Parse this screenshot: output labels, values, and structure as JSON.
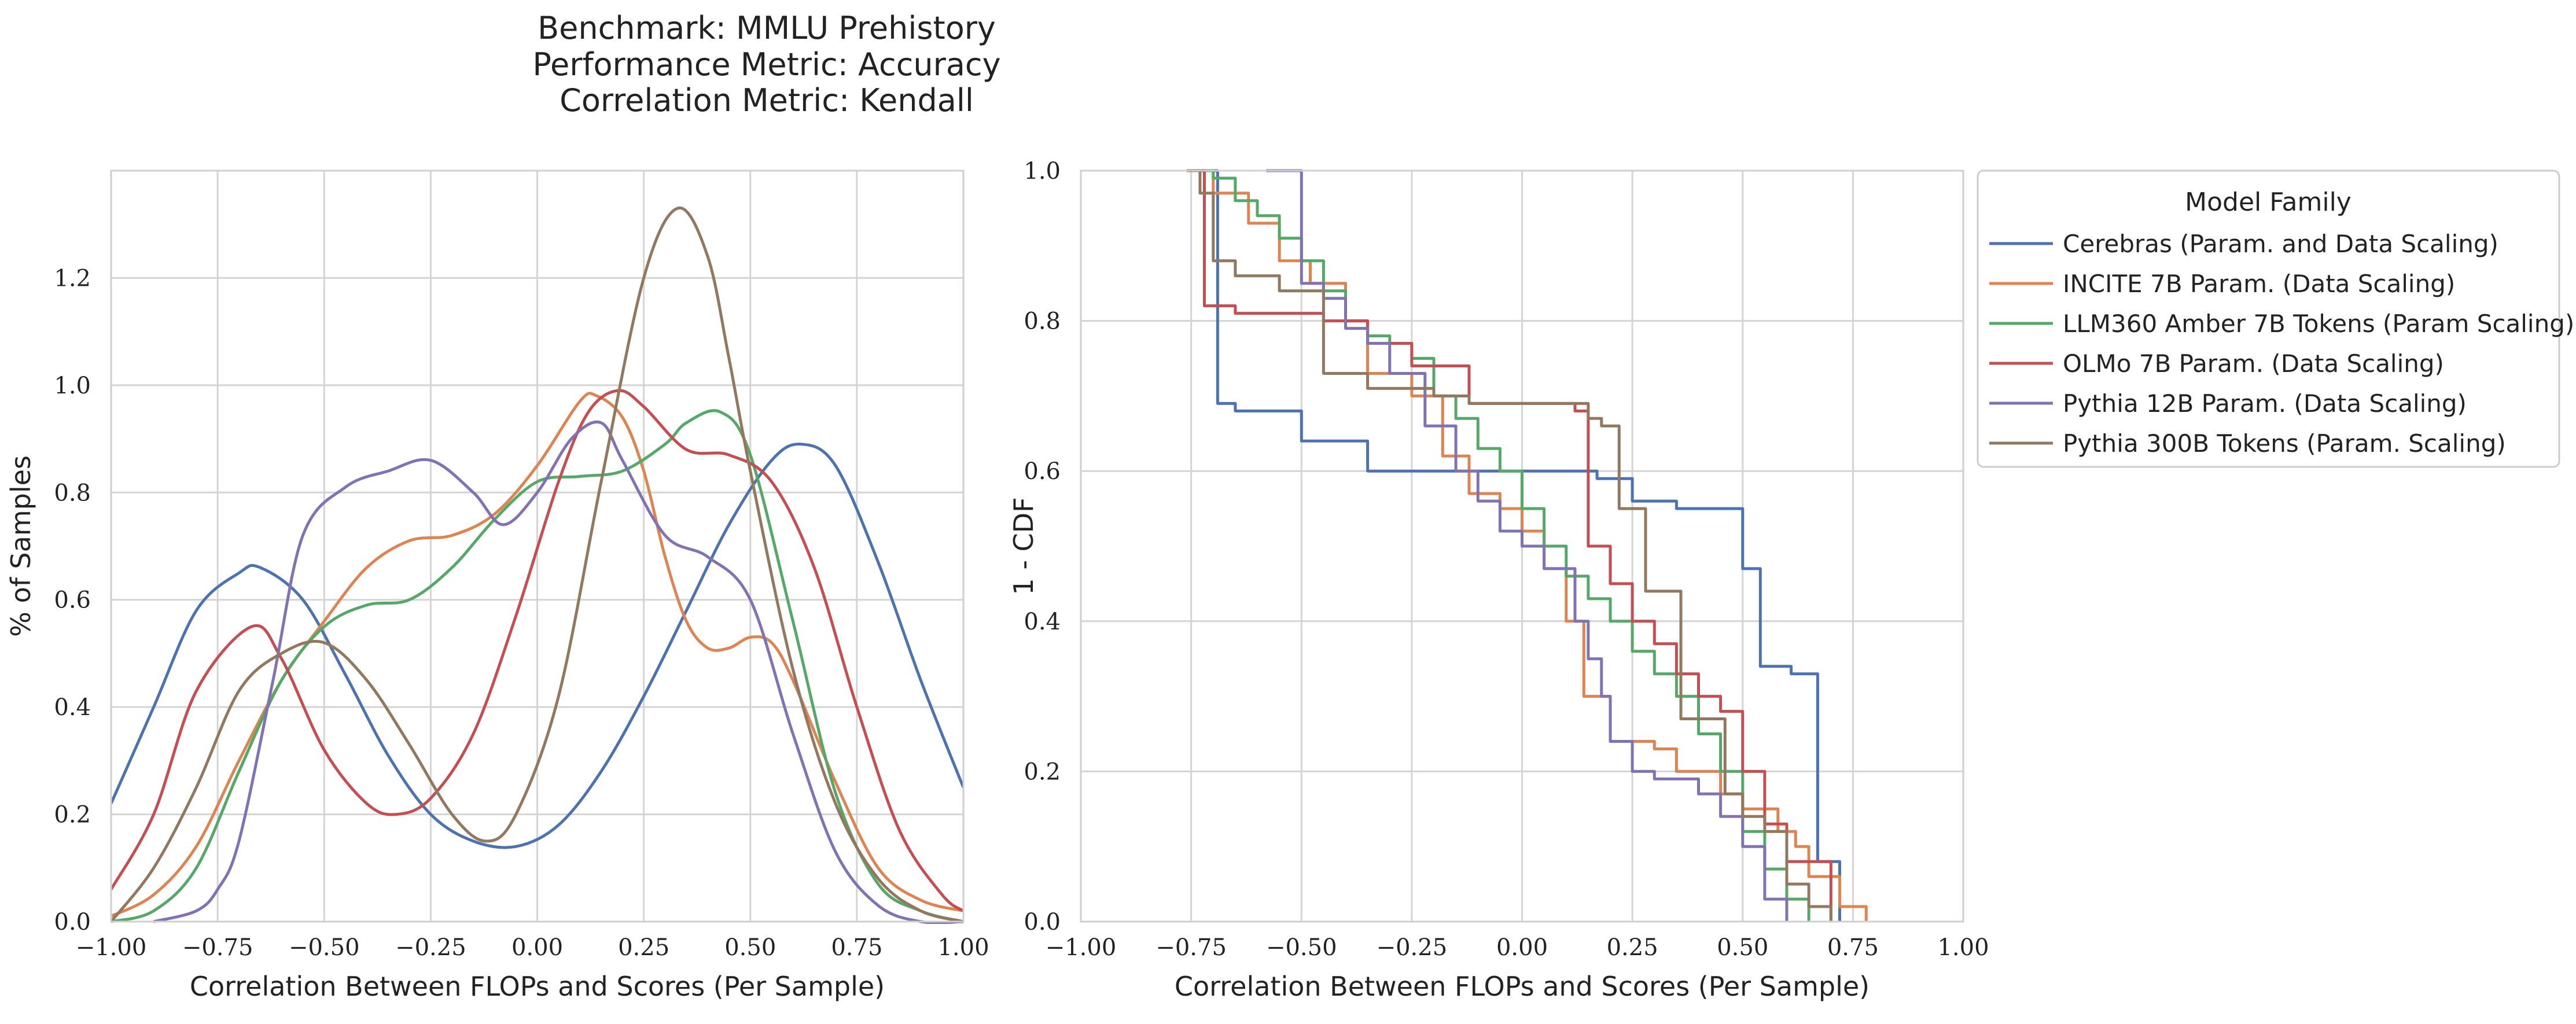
{
  "figure": {
    "title_lines": [
      "Benchmark: MMLU Prehistory",
      "Performance Metric: Accuracy",
      "Correlation Metric: Kendall"
    ]
  },
  "legend": {
    "title": "Model Family",
    "placement": "right of second panel, top",
    "entries": [
      {
        "name": "Cerebras (Param. and Data Scaling)",
        "color": "#4c72b0"
      },
      {
        "name": "INCITE 7B Param. (Data Scaling)",
        "color": "#dd8452"
      },
      {
        "name": "LLM360 Amber 7B Tokens (Param Scaling)",
        "color": "#55a868"
      },
      {
        "name": "OLMo 7B Param. (Data Scaling)",
        "color": "#c44e52"
      },
      {
        "name": "Pythia 12B Param. (Data Scaling)",
        "color": "#8172b3"
      },
      {
        "name": "Pythia 300B Tokens (Param. Scaling)",
        "color": "#937860"
      }
    ]
  },
  "chart_data": [
    {
      "type": "line",
      "subtype": "kde",
      "xlabel": "Correlation Between FLOPs and Scores (Per Sample)",
      "ylabel": "% of Samples",
      "xlim": [
        -1.0,
        1.0
      ],
      "ylim": [
        0.0,
        1.4
      ],
      "grid": true,
      "xticks": [
        -1.0,
        -0.75,
        -0.5,
        -0.25,
        0.0,
        0.25,
        0.5,
        0.75,
        1.0
      ],
      "xtick_labels": [
        "−1.00",
        "−0.75",
        "−0.50",
        "−0.25",
        "0.00",
        "0.25",
        "0.50",
        "0.75",
        "1.00"
      ],
      "yticks": [
        0.0,
        0.2,
        0.4,
        0.6,
        0.8,
        1.0,
        1.2
      ],
      "ytick_labels": [
        "0.0",
        "0.2",
        "0.4",
        "0.6",
        "0.8",
        "1.0",
        "1.2"
      ],
      "series": [
        {
          "name": "Cerebras (Param. and Data Scaling)",
          "color": "#4c72b0",
          "x": [
            -1.0,
            -0.9,
            -0.8,
            -0.7,
            -0.65,
            -0.55,
            -0.45,
            -0.35,
            -0.25,
            -0.15,
            -0.05,
            0.05,
            0.15,
            0.25,
            0.35,
            0.45,
            0.55,
            0.62,
            0.7,
            0.8,
            0.9,
            1.0
          ],
          "y": [
            0.22,
            0.4,
            0.58,
            0.65,
            0.66,
            0.6,
            0.46,
            0.31,
            0.2,
            0.15,
            0.14,
            0.18,
            0.28,
            0.42,
            0.58,
            0.74,
            0.86,
            0.89,
            0.85,
            0.67,
            0.45,
            0.25
          ]
        },
        {
          "name": "INCITE 7B Param. (Data Scaling)",
          "color": "#dd8452",
          "x": [
            -1.0,
            -0.9,
            -0.8,
            -0.7,
            -0.6,
            -0.5,
            -0.4,
            -0.3,
            -0.2,
            -0.1,
            0.0,
            0.1,
            0.14,
            0.2,
            0.25,
            0.3,
            0.35,
            0.4,
            0.45,
            0.5,
            0.55,
            0.6,
            0.7,
            0.8,
            0.9,
            1.0
          ],
          "y": [
            0.01,
            0.05,
            0.14,
            0.3,
            0.45,
            0.56,
            0.66,
            0.71,
            0.72,
            0.76,
            0.85,
            0.97,
            0.98,
            0.94,
            0.84,
            0.68,
            0.56,
            0.51,
            0.51,
            0.53,
            0.52,
            0.45,
            0.26,
            0.1,
            0.04,
            0.02
          ]
        },
        {
          "name": "LLM360 Amber 7B Tokens (Param Scaling)",
          "color": "#55a868",
          "x": [
            -1.0,
            -0.9,
            -0.8,
            -0.7,
            -0.6,
            -0.5,
            -0.4,
            -0.3,
            -0.2,
            -0.1,
            0.0,
            0.1,
            0.2,
            0.3,
            0.35,
            0.43,
            0.5,
            0.6,
            0.7,
            0.8,
            0.9,
            1.0
          ],
          "y": [
            0.0,
            0.02,
            0.1,
            0.28,
            0.45,
            0.55,
            0.59,
            0.6,
            0.66,
            0.75,
            0.82,
            0.83,
            0.84,
            0.89,
            0.93,
            0.95,
            0.87,
            0.56,
            0.24,
            0.07,
            0.02,
            0.0
          ]
        },
        {
          "name": "OLMo 7B Param. (Data Scaling)",
          "color": "#c44e52",
          "x": [
            -1.0,
            -0.9,
            -0.8,
            -0.67,
            -0.6,
            -0.5,
            -0.4,
            -0.33,
            -0.25,
            -0.15,
            -0.05,
            0.05,
            0.12,
            0.19,
            0.25,
            0.35,
            0.45,
            0.55,
            0.65,
            0.75,
            0.85,
            0.95,
            1.0
          ],
          "y": [
            0.06,
            0.2,
            0.43,
            0.55,
            0.49,
            0.32,
            0.22,
            0.2,
            0.23,
            0.35,
            0.57,
            0.82,
            0.95,
            0.99,
            0.96,
            0.88,
            0.87,
            0.82,
            0.66,
            0.4,
            0.17,
            0.05,
            0.02
          ]
        },
        {
          "name": "Pythia 12B Param. (Data Scaling)",
          "color": "#8172b3",
          "x": [
            -0.9,
            -0.8,
            -0.75,
            -0.7,
            -0.62,
            -0.55,
            -0.45,
            -0.35,
            -0.25,
            -0.15,
            -0.08,
            0.0,
            0.08,
            0.15,
            0.2,
            0.3,
            0.4,
            0.5,
            0.6,
            0.7,
            0.8,
            0.9,
            1.0
          ],
          "y": [
            0.0,
            0.02,
            0.06,
            0.15,
            0.45,
            0.72,
            0.81,
            0.84,
            0.86,
            0.8,
            0.74,
            0.8,
            0.9,
            0.93,
            0.86,
            0.72,
            0.68,
            0.6,
            0.35,
            0.13,
            0.03,
            0.0,
            0.0
          ]
        },
        {
          "name": "Pythia 300B Tokens (Param. Scaling)",
          "color": "#937860",
          "x": [
            -1.0,
            -0.9,
            -0.8,
            -0.7,
            -0.6,
            -0.5,
            -0.4,
            -0.3,
            -0.2,
            -0.12,
            -0.05,
            0.05,
            0.15,
            0.25,
            0.33,
            0.4,
            0.45,
            0.5,
            0.6,
            0.7,
            0.8,
            0.9,
            1.0
          ],
          "y": [
            0.0,
            0.1,
            0.25,
            0.43,
            0.5,
            0.52,
            0.45,
            0.33,
            0.2,
            0.15,
            0.2,
            0.42,
            0.82,
            1.2,
            1.33,
            1.24,
            1.05,
            0.84,
            0.47,
            0.22,
            0.08,
            0.02,
            0.0
          ]
        }
      ]
    },
    {
      "type": "line",
      "subtype": "step",
      "xlabel": "Correlation Between FLOPs and Scores (Per Sample)",
      "ylabel": "1 - CDF",
      "xlim": [
        -1.0,
        1.0
      ],
      "ylim": [
        0.0,
        1.0
      ],
      "grid": true,
      "xticks": [
        -1.0,
        -0.75,
        -0.5,
        -0.25,
        0.0,
        0.25,
        0.5,
        0.75,
        1.0
      ],
      "xtick_labels": [
        "−1.00",
        "−0.75",
        "−0.50",
        "−0.25",
        "0.00",
        "0.25",
        "0.50",
        "0.75",
        "1.00"
      ],
      "yticks": [
        0.0,
        0.2,
        0.4,
        0.6,
        0.8,
        1.0
      ],
      "ytick_labels": [
        "0.0",
        "0.2",
        "0.4",
        "0.6",
        "0.8",
        "1.0"
      ],
      "series": [
        {
          "name": "Cerebras (Param. and Data Scaling)",
          "color": "#4c72b0",
          "x": [
            -0.72,
            -0.69,
            -0.65,
            -0.5,
            -0.35,
            0.17,
            0.25,
            0.35,
            0.5,
            0.54,
            0.61,
            0.67,
            0.72
          ],
          "y": [
            1.0,
            0.69,
            0.68,
            0.64,
            0.6,
            0.59,
            0.56,
            0.55,
            0.47,
            0.34,
            0.33,
            0.08,
            0.0
          ]
        },
        {
          "name": "INCITE 7B Param. (Data Scaling)",
          "color": "#dd8452",
          "x": [
            -0.76,
            -0.7,
            -0.62,
            -0.55,
            -0.48,
            -0.4,
            -0.35,
            -0.25,
            -0.18,
            -0.12,
            -0.05,
            0.0,
            0.05,
            0.1,
            0.14,
            0.2,
            0.3,
            0.35,
            0.45,
            0.5,
            0.58,
            0.62,
            0.65,
            0.72,
            0.78
          ],
          "y": [
            1.0,
            0.97,
            0.93,
            0.88,
            0.85,
            0.8,
            0.73,
            0.7,
            0.62,
            0.57,
            0.55,
            0.52,
            0.47,
            0.4,
            0.3,
            0.24,
            0.23,
            0.2,
            0.17,
            0.15,
            0.12,
            0.1,
            0.06,
            0.02,
            0.0
          ]
        },
        {
          "name": "LLM360 Amber 7B Tokens (Param Scaling)",
          "color": "#55a868",
          "x": [
            -0.75,
            -0.7,
            -0.65,
            -0.6,
            -0.55,
            -0.5,
            -0.45,
            -0.4,
            -0.35,
            -0.3,
            -0.25,
            -0.2,
            -0.15,
            -0.1,
            -0.05,
            0.0,
            0.05,
            0.1,
            0.15,
            0.2,
            0.25,
            0.3,
            0.35,
            0.4,
            0.45,
            0.5,
            0.55,
            0.6,
            0.65
          ],
          "y": [
            1.0,
            0.99,
            0.96,
            0.94,
            0.91,
            0.88,
            0.84,
            0.8,
            0.78,
            0.77,
            0.75,
            0.7,
            0.67,
            0.63,
            0.6,
            0.55,
            0.5,
            0.46,
            0.43,
            0.4,
            0.36,
            0.33,
            0.3,
            0.25,
            0.2,
            0.12,
            0.07,
            0.03,
            0.0
          ]
        },
        {
          "name": "OLMo 7B Param. (Data Scaling)",
          "color": "#c44e52",
          "x": [
            -0.76,
            -0.72,
            -0.65,
            -0.45,
            -0.35,
            -0.25,
            -0.12,
            0.12,
            0.15,
            0.2,
            0.25,
            0.3,
            0.35,
            0.4,
            0.45,
            0.5,
            0.55,
            0.6,
            0.7
          ],
          "y": [
            1.0,
            0.82,
            0.81,
            0.8,
            0.77,
            0.74,
            0.69,
            0.68,
            0.5,
            0.45,
            0.4,
            0.37,
            0.33,
            0.3,
            0.28,
            0.2,
            0.13,
            0.08,
            0.0
          ]
        },
        {
          "name": "Pythia 12B Param. (Data Scaling)",
          "color": "#8172b3",
          "x": [
            -0.58,
            -0.5,
            -0.45,
            -0.4,
            -0.35,
            -0.3,
            -0.22,
            -0.15,
            -0.1,
            -0.05,
            0.0,
            0.05,
            0.12,
            0.15,
            0.18,
            0.2,
            0.25,
            0.3,
            0.4,
            0.45,
            0.5,
            0.55,
            0.6
          ],
          "y": [
            1.0,
            0.85,
            0.83,
            0.79,
            0.77,
            0.73,
            0.66,
            0.6,
            0.56,
            0.52,
            0.5,
            0.47,
            0.4,
            0.35,
            0.3,
            0.24,
            0.2,
            0.19,
            0.17,
            0.14,
            0.1,
            0.03,
            0.0
          ]
        },
        {
          "name": "Pythia 300B Tokens (Param. Scaling)",
          "color": "#937860",
          "x": [
            -0.76,
            -0.73,
            -0.7,
            -0.65,
            -0.55,
            -0.45,
            -0.35,
            -0.2,
            -0.12,
            0.15,
            0.18,
            0.22,
            0.28,
            0.36,
            0.46,
            0.5,
            0.55,
            0.6,
            0.65,
            0.7
          ],
          "y": [
            1.0,
            0.97,
            0.88,
            0.86,
            0.84,
            0.73,
            0.71,
            0.7,
            0.69,
            0.67,
            0.66,
            0.55,
            0.44,
            0.27,
            0.17,
            0.14,
            0.12,
            0.05,
            0.02,
            0.0
          ]
        }
      ]
    }
  ]
}
